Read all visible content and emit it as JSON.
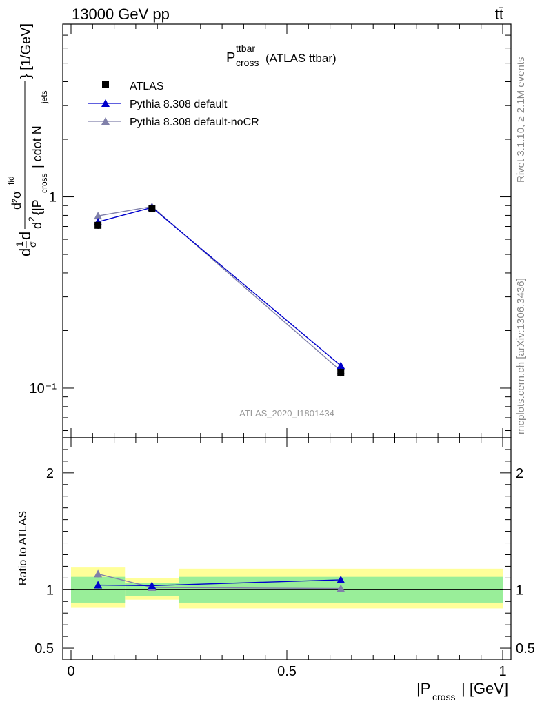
{
  "header": {
    "left": "13000 GeV pp",
    "right": "tt̄"
  },
  "side_text": {
    "rivet": "Rivet 3.1.10, ≥ 2.1M events",
    "mcplots": "mcplots.cern.ch [arXiv:1306.3436]"
  },
  "main_plot": {
    "title_main": "P",
    "title_sup": "ttbar",
    "title_sub": "cross",
    "title_rest": "(ATLAS ttbar)",
    "watermark": "ATLAS_2020_I1801434",
    "ylabel": {
      "part1": "d",
      "frac_top": "1",
      "frac_bottom": "σ",
      "part2": "d",
      "big_top": "d²σ",
      "big_top_sup": "fid",
      "big_bottom_a": "d",
      "big_bottom_sup": "2",
      "big_bottom_b": "{|P",
      "big_bottom_sub": "cross",
      "big_bottom_c": "| cdot N",
      "big_bottom_sub2": "jets",
      "units": "} [1/GeV]"
    },
    "yticks": [
      {
        "value": 1,
        "label": "1"
      },
      {
        "value": 0.1,
        "label": "10⁻¹"
      }
    ]
  },
  "legend": [
    {
      "name": "ATLAS",
      "marker": "square",
      "color": "#000000"
    },
    {
      "name": "Pythia 8.308 default",
      "marker": "triangle",
      "color": "#0000cc"
    },
    {
      "name": "Pythia 8.308 default-noCR",
      "marker": "triangle",
      "color": "#8080aa"
    }
  ],
  "ratio_plot": {
    "ylabel": "Ratio to ATLAS",
    "yticks": [
      {
        "value": 2,
        "label": "2"
      },
      {
        "value": 1,
        "label": "1"
      },
      {
        "value": 0.5,
        "label": "0.5"
      }
    ]
  },
  "xaxis": {
    "label_a": "|P",
    "label_sub": "cross",
    "label_b": "| [GeV]",
    "ticks": [
      {
        "value": 0,
        "label": "0"
      },
      {
        "value": 0.5,
        "label": "0.5"
      },
      {
        "value": 1,
        "label": "1"
      }
    ]
  },
  "chart_data": {
    "type": "scatter",
    "x": [
      0.0625,
      0.1875,
      0.625
    ],
    "bin_edges": [
      0,
      0.125,
      0.25,
      1.0
    ],
    "xlim": [
      0,
      1
    ],
    "ylim_main": [
      0.055,
      8
    ],
    "yscale_main": "log",
    "ylim_ratio": [
      0.4,
      2.3
    ],
    "series": [
      {
        "name": "ATLAS",
        "color": "#000000",
        "marker": "square",
        "values": [
          0.71,
          0.865,
          0.121
        ],
        "errors": [
          0.03,
          0.03,
          0.006
        ]
      },
      {
        "name": "Pythia 8.308 default",
        "color": "#0000cc",
        "marker": "triangle",
        "values": [
          0.74,
          0.88,
          0.131
        ],
        "errors": [
          0.02,
          0.02,
          0.005
        ]
      },
      {
        "name": "Pythia 8.308 default-noCR",
        "color": "#8080aa",
        "marker": "triangle",
        "values": [
          0.795,
          0.89,
          0.123
        ],
        "errors": [
          0.02,
          0.02,
          0.005
        ]
      }
    ],
    "ratio": {
      "band_inner": [
        {
          "lo": 0.89,
          "hi": 1.11
        },
        {
          "lo": 0.945,
          "hi": 1.055
        },
        {
          "lo": 0.89,
          "hi": 1.11
        }
      ],
      "band_outer": [
        {
          "lo": 0.845,
          "hi": 1.19
        },
        {
          "lo": 0.915,
          "hi": 1.1
        },
        {
          "lo": 0.84,
          "hi": 1.18
        }
      ],
      "series": [
        {
          "name": "Pythia 8.308 default",
          "color": "#0000cc",
          "values": [
            1.04,
            1.035,
            1.085
          ],
          "errors": [
            0.03,
            0.03,
            0.03
          ]
        },
        {
          "name": "Pythia 8.308 default-noCR",
          "color": "#8080aa",
          "values": [
            1.135,
            1.02,
            1.01
          ],
          "errors": [
            0.03,
            0.03,
            0.03
          ]
        }
      ]
    }
  }
}
